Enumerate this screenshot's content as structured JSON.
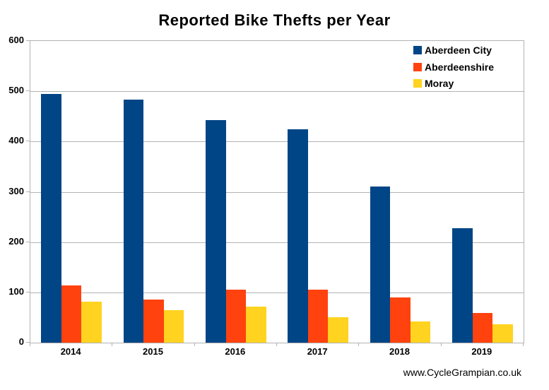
{
  "title": "Reported Bike Thefts per Year",
  "footer": "www.CycleGrampian.co.uk",
  "colors": {
    "background": "#ffffff",
    "grid": "#b3b3b3",
    "axis": "#b3b3b3",
    "text": "#000000"
  },
  "chart_data": {
    "type": "bar",
    "title": "Reported Bike Thefts per Year",
    "categories": [
      "2014",
      "2015",
      "2016",
      "2017",
      "2018",
      "2019"
    ],
    "series": [
      {
        "name": "Aberdeen City",
        "color": "#004586",
        "values": [
          495,
          483,
          442,
          425,
          310,
          228
        ]
      },
      {
        "name": "Aberdeenshire",
        "color": "#FF420E",
        "values": [
          114,
          86,
          106,
          105,
          90,
          59
        ]
      },
      {
        "name": "Moray",
        "color": "#FFD320",
        "values": [
          81,
          64,
          71,
          51,
          42,
          37
        ]
      }
    ],
    "xlabel": "",
    "ylabel": "",
    "ylim": [
      0,
      600
    ],
    "ytick_interval": 100,
    "yticks": [
      "0",
      "100",
      "200",
      "300",
      "400",
      "500",
      "600"
    ],
    "grid": true,
    "legend_position": "top-right"
  }
}
